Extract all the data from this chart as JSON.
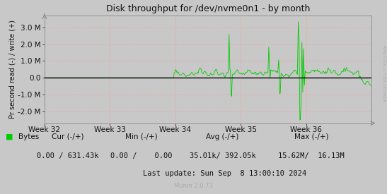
{
  "title": "Disk throughput for /dev/nvme0n1 - by month",
  "ylabel": "Pr second read (-) / write (+)",
  "bg_color": "#c8c8c8",
  "plot_bg_color": "#c8c8c8",
  "grid_color": "#ff9999",
  "line_color": "#00cc00",
  "zero_line_color": "#000000",
  "ylim_min": -2700000,
  "ylim_max": 3700000,
  "yticks": [
    -2000000,
    -1000000,
    0,
    1000000,
    2000000,
    3000000
  ],
  "ytick_labels": [
    "-2.0 M",
    "-1.0 M",
    "0.0",
    "1.0 M",
    "2.0 M",
    "3.0 M"
  ],
  "week_labels": [
    "Week 32",
    "Week 33",
    "Week 34",
    "Week 35",
    "Week 36"
  ],
  "legend_label": "Bytes",
  "legend_color": "#00cc00",
  "stats_cur": "0.00 / 631.43k",
  "stats_min": "0.00 /    0.00",
  "stats_avg": "35.01k/ 392.05k",
  "stats_max": "15.62M/  16.13M",
  "footer": "Munin 2.0.73",
  "last_update": "Last update: Sun Sep  8 13:00:10 2024",
  "right_label": "RRDTOOL / TOBI OETIKER",
  "n_points": 800
}
